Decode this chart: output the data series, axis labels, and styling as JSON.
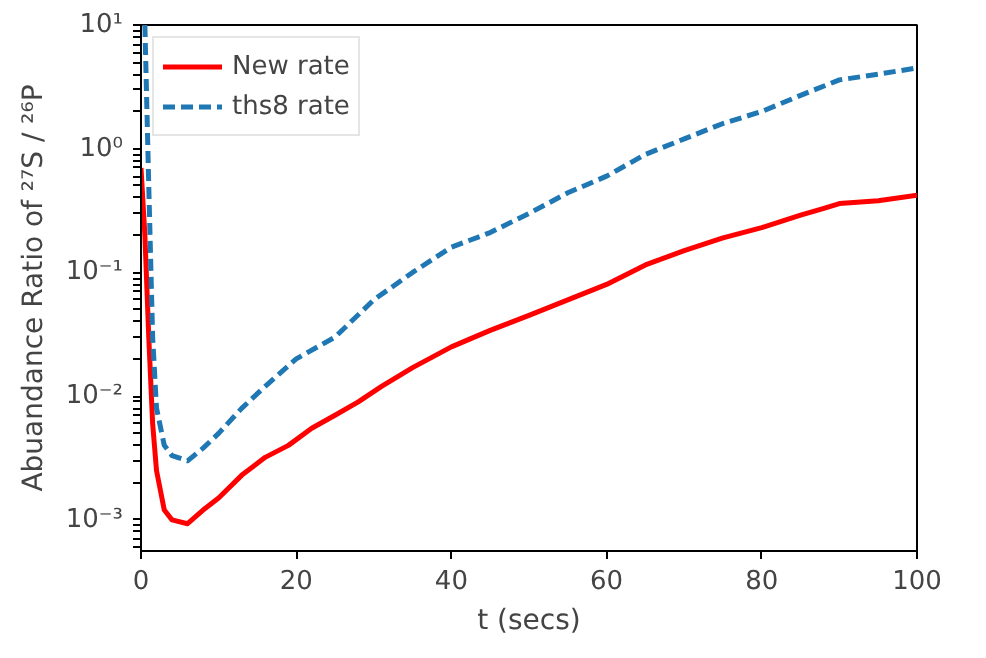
{
  "chart_data": {
    "type": "line",
    "xlabel": "t (secs)",
    "ylabel": "Abuandance Ratio of ²⁷S / ²⁶P",
    "log": "y",
    "grid": false,
    "legend": "top left",
    "marker": "none",
    "xlim": [
      0,
      100
    ],
    "xticks": [
      0,
      20,
      40,
      60,
      80,
      100
    ],
    "ylim": [
      0.00056,
      10
    ],
    "yticks": [
      {
        "value": 0.001,
        "label": "10⁻³"
      },
      {
        "value": 0.01,
        "label": "10⁻²"
      },
      {
        "value": 0.1,
        "label": "10⁻¹"
      },
      {
        "value": 1,
        "label": "10⁰"
      },
      {
        "value": 10,
        "label": "10¹"
      }
    ],
    "series": [
      {
        "name": "New rate",
        "color": "#ff0000",
        "line_style": "solid",
        "x": [
          0,
          0.5,
          1,
          1.5,
          2,
          3,
          4,
          6,
          8,
          10,
          13,
          16,
          19,
          22,
          25,
          28,
          31,
          35,
          40,
          45,
          50,
          55,
          60,
          65,
          70,
          75,
          80,
          85,
          88,
          90,
          95,
          100
        ],
        "values": [
          0.7,
          0.2,
          0.03,
          0.006,
          0.0025,
          0.0012,
          0.001,
          0.00093,
          0.0012,
          0.0015,
          0.0023,
          0.0032,
          0.004,
          0.0055,
          0.007,
          0.009,
          0.012,
          0.017,
          0.025,
          0.034,
          0.045,
          0.06,
          0.08,
          0.115,
          0.15,
          0.19,
          0.23,
          0.29,
          0.33,
          0.36,
          0.38,
          0.42
        ]
      },
      {
        "name": "ths8 rate",
        "color": "#1f77b4",
        "line_style": "dashed",
        "x": [
          0.5,
          1,
          1.5,
          2,
          3,
          4,
          6,
          8,
          10,
          13,
          16,
          20,
          25,
          30,
          35,
          40,
          45,
          50,
          55,
          60,
          65,
          70,
          75,
          80,
          85,
          90,
          95,
          100
        ],
        "values": [
          10,
          0.5,
          0.03,
          0.008,
          0.004,
          0.0033,
          0.003,
          0.0038,
          0.005,
          0.008,
          0.012,
          0.02,
          0.03,
          0.06,
          0.1,
          0.16,
          0.21,
          0.3,
          0.44,
          0.6,
          0.9,
          1.2,
          1.6,
          2.0,
          2.7,
          3.6,
          4.0,
          4.5
        ]
      }
    ]
  }
}
